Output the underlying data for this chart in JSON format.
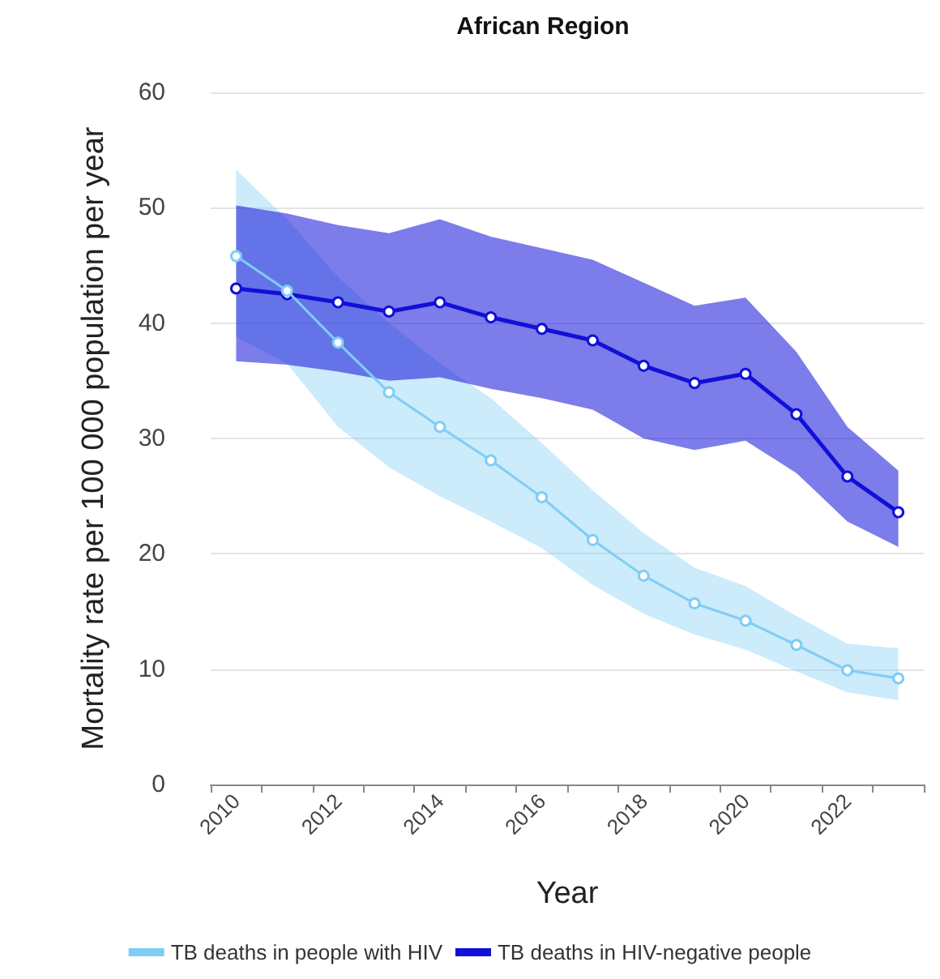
{
  "chart_data": {
    "type": "line",
    "title": "African Region",
    "xlabel": "Year",
    "ylabel": "Mortality rate per 100 000 population per year",
    "categories": [
      "2010",
      null,
      "2012",
      null,
      "2014",
      null,
      "2016",
      null,
      "2018",
      null,
      "2020",
      null,
      "2022",
      null
    ],
    "series": [
      {
        "name": "TB deaths in people with HIV",
        "color": "#7fcdf5",
        "values": [
          45.8,
          42.8,
          38.3,
          34.0,
          31.0,
          28.1,
          24.9,
          21.2,
          18.1,
          15.7,
          14.2,
          12.1,
          9.9,
          9.2
        ],
        "upper": [
          53.3,
          49.0,
          44.0,
          40.0,
          36.5,
          33.5,
          29.6,
          25.5,
          21.8,
          18.8,
          17.2,
          14.6,
          12.2,
          11.8
        ],
        "lower": [
          38.8,
          36.5,
          31.0,
          27.5,
          25.0,
          22.8,
          20.5,
          17.3,
          14.8,
          13.0,
          11.7,
          9.8,
          8.0,
          7.3
        ]
      },
      {
        "name": "TB deaths in HIV-negative people",
        "color": "#1010d8",
        "values": [
          43.0,
          42.5,
          41.8,
          41.0,
          41.8,
          40.5,
          39.5,
          38.5,
          36.3,
          34.8,
          35.6,
          32.1,
          26.7,
          23.6
        ],
        "upper": [
          50.2,
          49.5,
          48.5,
          47.8,
          49.0,
          47.5,
          46.5,
          45.5,
          43.5,
          41.5,
          42.2,
          37.5,
          31.0,
          27.2
        ],
        "lower": [
          36.7,
          36.4,
          35.8,
          35.0,
          35.3,
          34.3,
          33.5,
          32.5,
          30.0,
          29.0,
          29.8,
          27.0,
          22.8,
          20.6
        ]
      }
    ],
    "ylim": [
      0,
      60
    ],
    "yticks": [
      0,
      10,
      20,
      30,
      40,
      50,
      60
    ],
    "grid": "y",
    "legend": "bottom",
    "marker": "circle",
    "line_style": "solid"
  }
}
